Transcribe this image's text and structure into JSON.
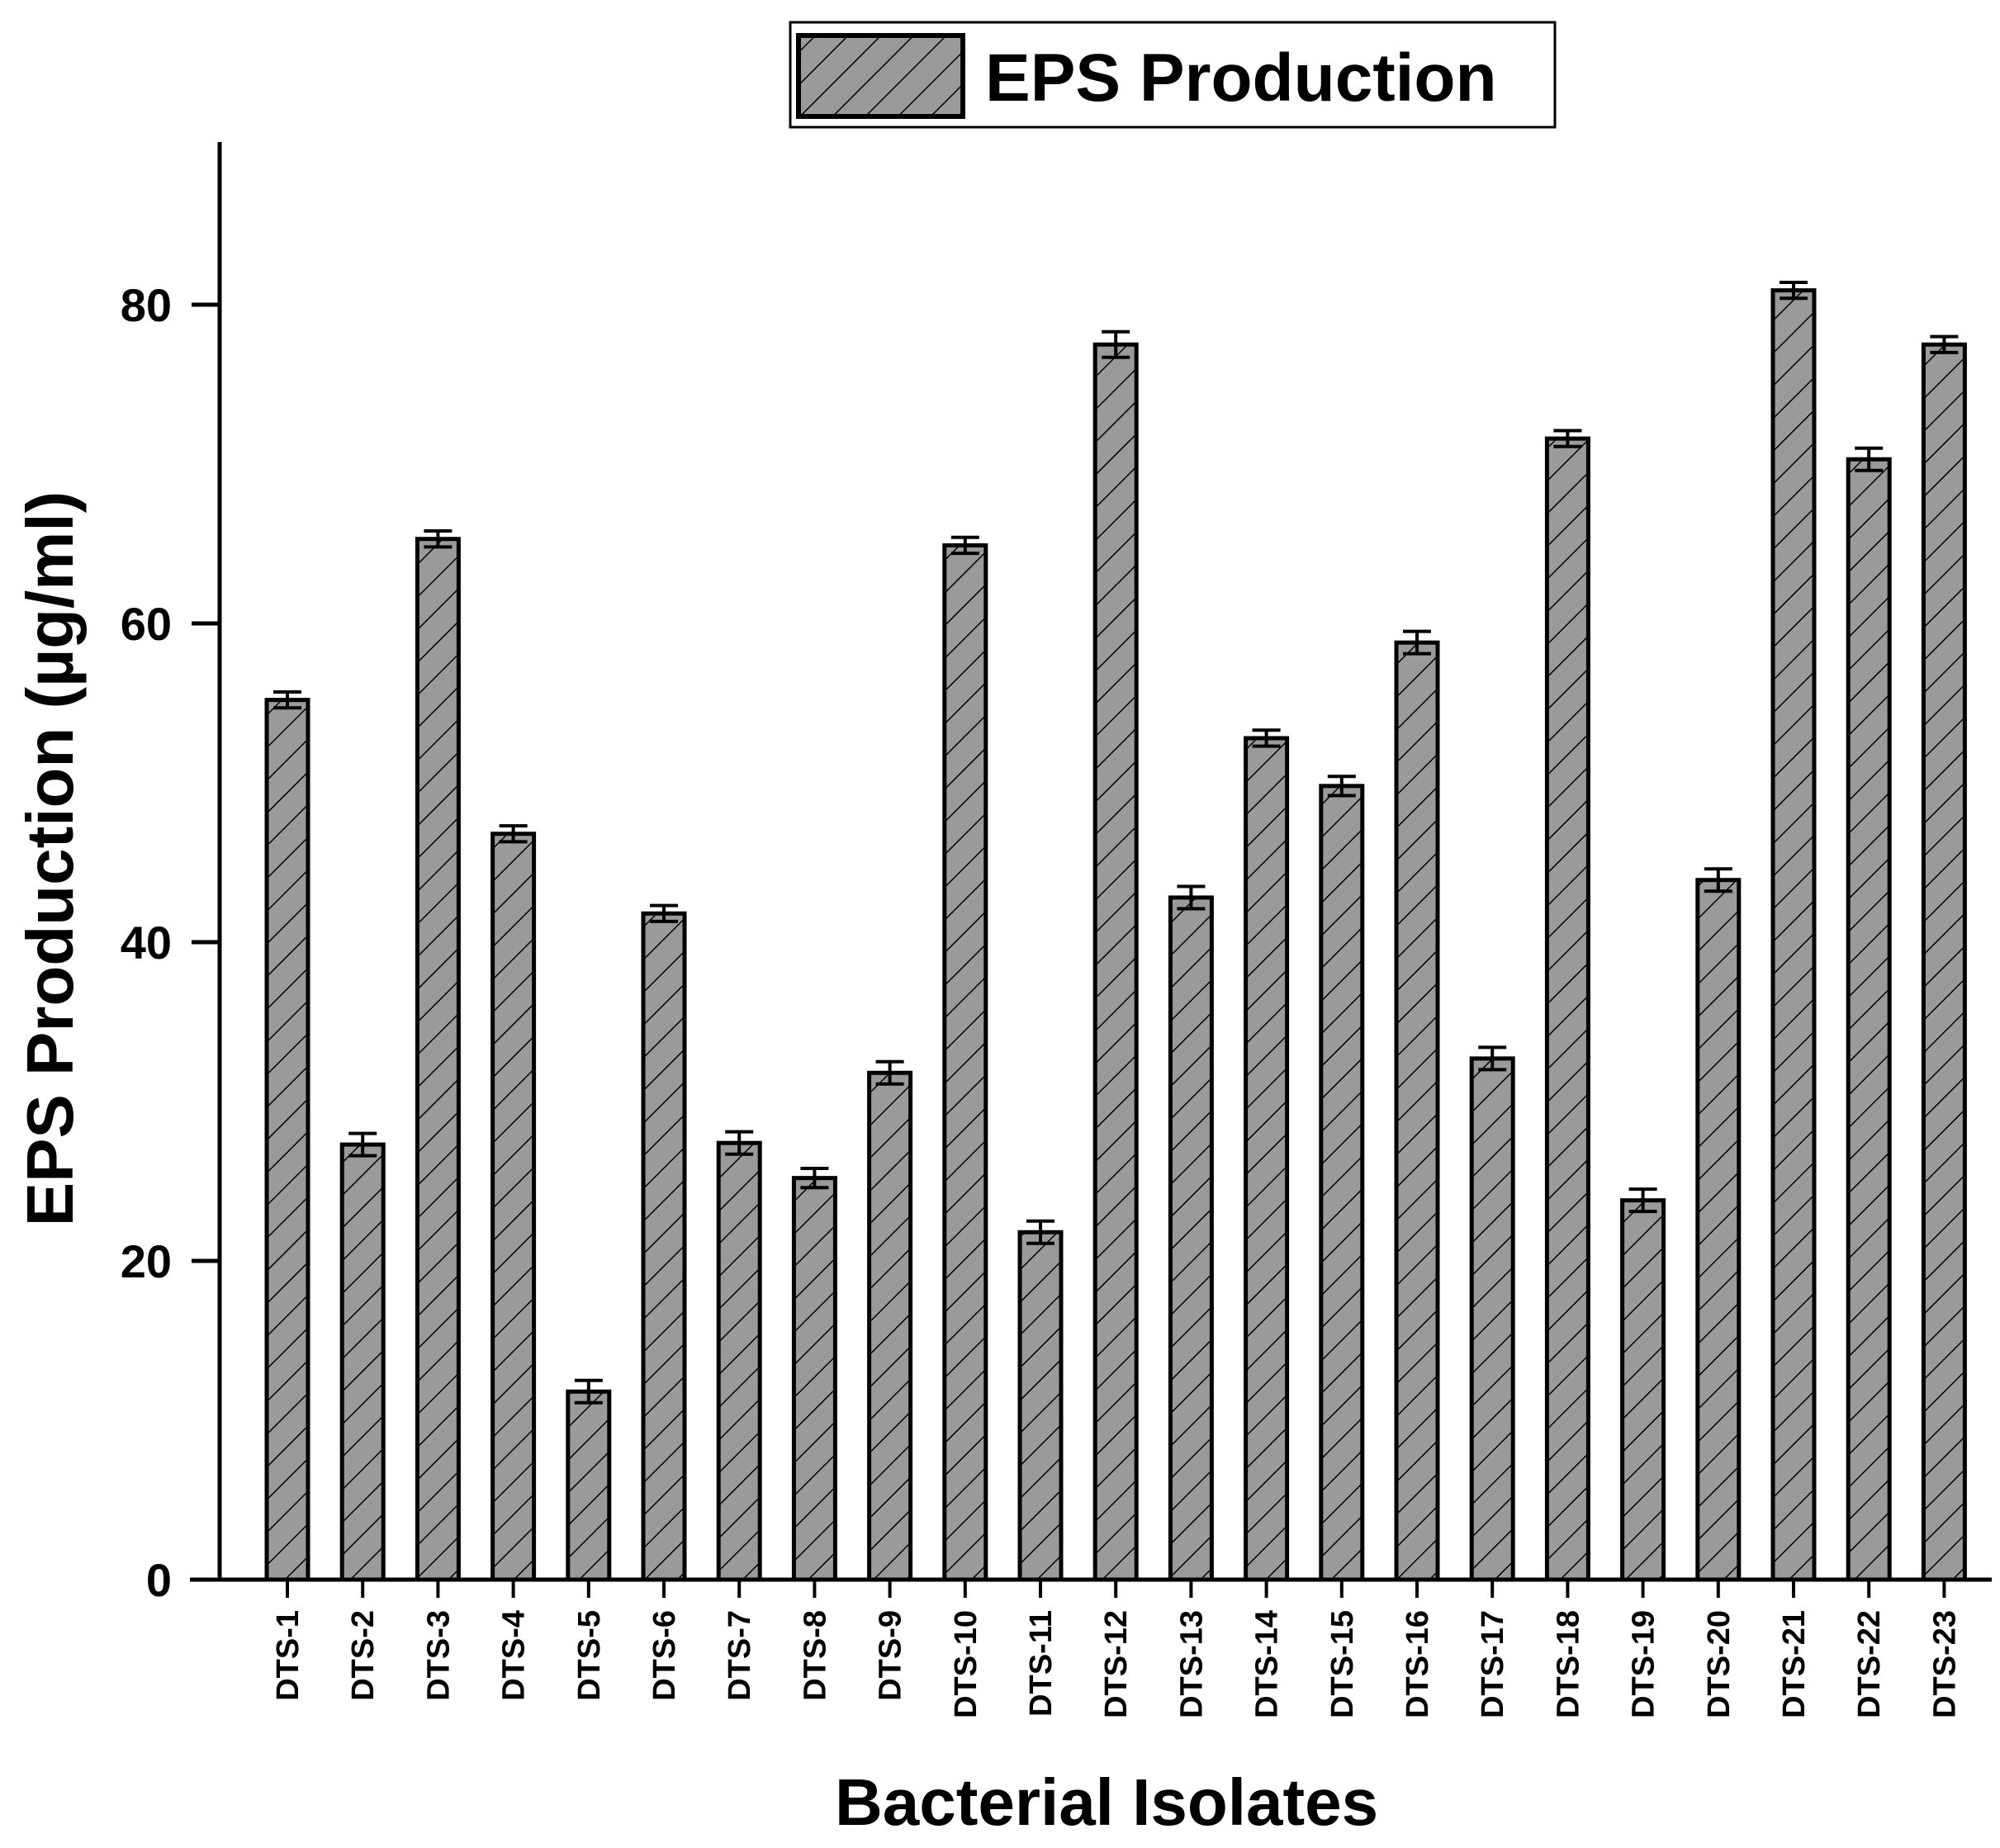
{
  "chart_data": {
    "type": "bar",
    "title": "",
    "xlabel": "Bacterial Isolates",
    "ylabel": "EPS Production (µg/ml)",
    "ylim": [
      0,
      90
    ],
    "yticks": [
      "0",
      "20",
      "40",
      "60",
      "80"
    ],
    "legend": {
      "position": "top-center",
      "entries": [
        "EPS Production"
      ]
    },
    "grid": false,
    "colors": {
      "bar_fill": "#9a9a9a",
      "hatch": "#000000",
      "edge": "#000000"
    },
    "categories": [
      "DTS-1",
      "DTS-2",
      "DTS-3",
      "DTS-4",
      "DTS-5",
      "DTS-6",
      "DTS-7",
      "DTS-8",
      "DTS-9",
      "DTS-10",
      "DTS-11",
      "DTS-12",
      "DTS-13",
      "DTS-14",
      "DTS-15",
      "DTS-16",
      "DTS-17",
      "DTS-18",
      "DTS-19",
      "DTS-20",
      "DTS-21",
      "DTS-22",
      "DTS-23"
    ],
    "series": [
      {
        "name": "EPS Production",
        "values": [
          55.2,
          27.3,
          65.3,
          46.8,
          11.8,
          41.8,
          27.4,
          25.2,
          31.8,
          64.9,
          21.8,
          77.5,
          42.8,
          52.8,
          49.8,
          58.8,
          32.7,
          71.6,
          23.8,
          43.9,
          80.9,
          70.3,
          77.5
        ],
        "errors": [
          0.5,
          0.7,
          0.5,
          0.5,
          0.7,
          0.5,
          0.7,
          0.6,
          0.7,
          0.5,
          0.7,
          0.8,
          0.7,
          0.5,
          0.6,
          0.7,
          0.7,
          0.5,
          0.7,
          0.7,
          0.5,
          0.7,
          0.5
        ]
      }
    ]
  }
}
